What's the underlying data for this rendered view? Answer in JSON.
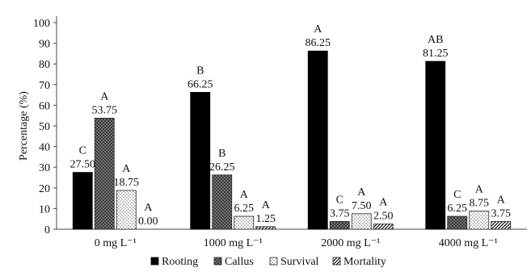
{
  "chart_data": {
    "type": "bar",
    "categories": [
      "0 mg L⁻¹",
      "1000 mg L⁻¹",
      "2000 mg L⁻¹",
      "4000 mg L⁻¹"
    ],
    "series": [
      {
        "name": "Rooting",
        "values": [
          27.5,
          66.25,
          86.25,
          81.25
        ],
        "value_labels": [
          "27.50",
          "66.25",
          "86.25",
          "81.25"
        ],
        "letters": [
          "C",
          "B",
          "A",
          "AB"
        ],
        "color": "#000000",
        "pattern": "solid"
      },
      {
        "name": "Callus",
        "values": [
          53.75,
          26.25,
          3.75,
          6.25
        ],
        "value_labels": [
          "53.75",
          "26.25",
          "3.75",
          "6.25"
        ],
        "letters": [
          "A",
          "B",
          "C",
          "C"
        ],
        "color": "#555555",
        "pattern": "crosshatch"
      },
      {
        "name": "Survival",
        "values": [
          18.75,
          6.25,
          7.5,
          8.75
        ],
        "value_labels": [
          "18.75",
          "6.25",
          "7.50",
          "8.75"
        ],
        "letters": [
          "A",
          "A",
          "A",
          "A"
        ],
        "color": "#ffffff",
        "pattern": "dots"
      },
      {
        "name": "Mortality",
        "values": [
          0.0,
          1.25,
          2.5,
          3.75
        ],
        "value_labels": [
          "0.00",
          "1.25",
          "2.50",
          "3.75"
        ],
        "letters": [
          "A",
          "A",
          "A",
          "A"
        ],
        "color": "#ffffff",
        "pattern": "diagonal"
      }
    ],
    "ylabel": "Percentage (%)",
    "xlabel": "",
    "ylim": [
      0,
      100
    ],
    "yticks": [
      0,
      10,
      20,
      30,
      40,
      50,
      60,
      70,
      80,
      90,
      100
    ],
    "grid": false,
    "legend": "bottom"
  }
}
